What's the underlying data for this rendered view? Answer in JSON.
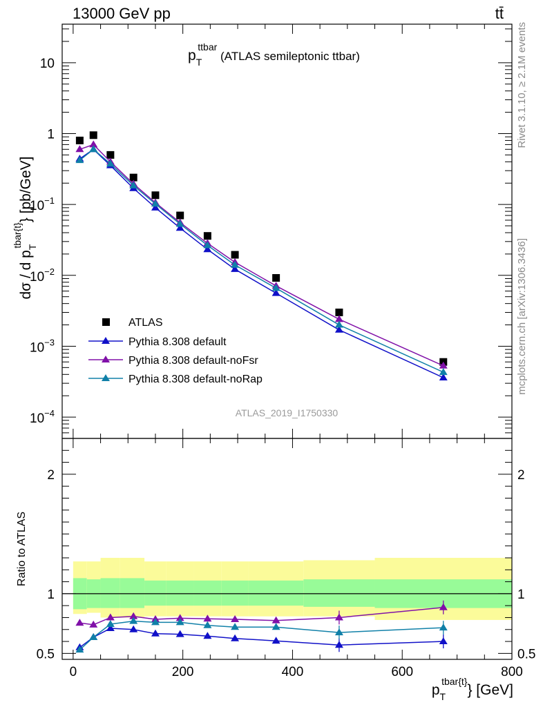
{
  "header": {
    "energy_label": "13000 GeV pp",
    "process_label": "tt̄"
  },
  "side_labels": {
    "rivet": "Rivet 3.1.10, ≥ 2.1M events",
    "mcplots": "mcplots.cern.ch [arXiv:1306.3436]"
  },
  "plot_title": {
    "main": "p",
    "sub": "T",
    "sup": "ttbar",
    "rest": " (ATLAS semileptonic ttbar)"
  },
  "analysis_id": "ATLAS_2019_I1750330",
  "axis_labels": {
    "y_main": "dσ / d p",
    "y_main_sub": "T",
    "y_main_sup": "tbar{t}",
    "y_main_rest": "} [pb/GeV]",
    "y_ratio": "Ratio to ATLAS",
    "x": "p",
    "x_sub": "T",
    "x_sup": "tbar{t}",
    "x_rest": "} [GeV]"
  },
  "legend": [
    {
      "label": "ATLAS",
      "marker": "square",
      "color": "#000000"
    },
    {
      "label": "Pythia 8.308 default",
      "marker": "triangle",
      "color": "#1010c8"
    },
    {
      "label": "Pythia 8.308 default-noFsr",
      "marker": "triangle",
      "color": "#8010a8"
    },
    {
      "label": "Pythia 8.308 default-noRap",
      "marker": "triangle",
      "color": "#1080a8"
    }
  ],
  "chart_data": {
    "type": "line",
    "x_axis": {
      "range": [
        -20,
        800
      ],
      "ticks": [
        0,
        200,
        400,
        600,
        800
      ],
      "tick_labels": [
        "0",
        "200",
        "400",
        "600",
        "800"
      ]
    },
    "main_y_axis": {
      "scale": "log",
      "range": [
        5e-05,
        35
      ],
      "tick_labels": [
        {
          "value": 10,
          "text": "10",
          "exp": ""
        },
        {
          "value": 1,
          "text": "1",
          "exp": ""
        },
        {
          "value": 0.1,
          "text": "10",
          "exp": "−1"
        },
        {
          "value": 0.01,
          "text": "10",
          "exp": "−2"
        },
        {
          "value": 0.001,
          "text": "10",
          "exp": "−3"
        },
        {
          "value": 0.0001,
          "text": "10",
          "exp": "−4"
        }
      ]
    },
    "ratio_y_axis": {
      "range": [
        0.45,
        2.3
      ],
      "ticks": [
        0.5,
        1,
        2
      ],
      "tick_labels": [
        "0.5",
        "1",
        "2"
      ]
    },
    "bins": [
      {
        "lo": 0,
        "hi": 25
      },
      {
        "lo": 25,
        "hi": 50
      },
      {
        "lo": 50,
        "hi": 85
      },
      {
        "lo": 85,
        "hi": 130
      },
      {
        "lo": 130,
        "hi": 170
      },
      {
        "lo": 170,
        "hi": 220
      },
      {
        "lo": 220,
        "hi": 270
      },
      {
        "lo": 270,
        "hi": 320
      },
      {
        "lo": 320,
        "hi": 420
      },
      {
        "lo": 420,
        "hi": 550
      },
      {
        "lo": 550,
        "hi": 800
      }
    ],
    "x": [
      12,
      37,
      68,
      110,
      150,
      195,
      245,
      295,
      370,
      485,
      675
    ],
    "series": [
      {
        "name": "ATLAS",
        "values": [
          0.8,
          0.95,
          0.5,
          0.24,
          0.135,
          0.07,
          0.036,
          0.0195,
          0.0092,
          0.003,
          0.0006
        ]
      },
      {
        "name": "Pythia 8.308 default",
        "values": [
          0.44,
          0.6,
          0.355,
          0.169,
          0.09,
          0.0465,
          0.0232,
          0.0122,
          0.0056,
          0.0017,
          0.00036
        ]
      },
      {
        "name": "Pythia 8.308 default-noFsr",
        "values": [
          0.6,
          0.7,
          0.4,
          0.195,
          0.106,
          0.0555,
          0.0283,
          0.0153,
          0.0071,
          0.0024,
          0.00053
        ]
      },
      {
        "name": "Pythia 8.308 default-noRap",
        "values": [
          0.42,
          0.6,
          0.375,
          0.185,
          0.102,
          0.053,
          0.0265,
          0.014,
          0.0066,
          0.002,
          0.00043
        ]
      }
    ],
    "ratio_series": [
      {
        "name": "Pythia 8.308 default",
        "values": [
          0.55,
          0.635,
          0.71,
          0.7,
          0.665,
          0.66,
          0.645,
          0.625,
          0.605,
          0.57,
          0.6
        ]
      },
      {
        "name": "Pythia 8.308 default-noFsr",
        "values": [
          0.755,
          0.74,
          0.8,
          0.81,
          0.785,
          0.795,
          0.79,
          0.785,
          0.775,
          0.8,
          0.885
        ]
      },
      {
        "name": "Pythia 8.308 default-noRap",
        "values": [
          0.53,
          0.635,
          0.745,
          0.77,
          0.76,
          0.76,
          0.735,
          0.72,
          0.72,
          0.675,
          0.715
        ]
      }
    ],
    "ratio_bands": {
      "inner": [
        [
          0.87,
          1.13
        ],
        [
          0.88,
          1.12
        ],
        [
          0.88,
          1.13
        ],
        [
          0.88,
          1.13
        ],
        [
          0.9,
          1.11
        ],
        [
          0.9,
          1.11
        ],
        [
          0.9,
          1.11
        ],
        [
          0.9,
          1.11
        ],
        [
          0.9,
          1.11
        ],
        [
          0.89,
          1.12
        ],
        [
          0.88,
          1.12
        ]
      ],
      "outer": [
        [
          0.83,
          1.27
        ],
        [
          0.84,
          1.27
        ],
        [
          0.8,
          1.3
        ],
        [
          0.8,
          1.3
        ],
        [
          0.81,
          1.27
        ],
        [
          0.81,
          1.27
        ],
        [
          0.81,
          1.27
        ],
        [
          0.81,
          1.27
        ],
        [
          0.81,
          1.27
        ],
        [
          0.81,
          1.28
        ],
        [
          0.78,
          1.3
        ]
      ]
    }
  }
}
